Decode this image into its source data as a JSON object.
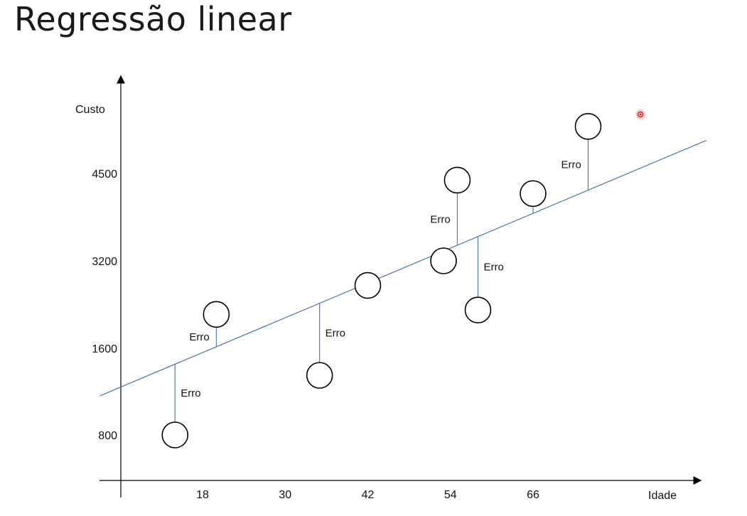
{
  "title": "Regressão linear",
  "chart_data": {
    "type": "scatter",
    "title": "Regressão linear",
    "xlabel": "Idade",
    "ylabel": "Custo",
    "x_ticks": [
      18,
      30,
      42,
      54,
      66
    ],
    "y_ticks": [
      800,
      1600,
      3200,
      4500
    ],
    "points": [
      {
        "x": 14,
        "y": 800
      },
      {
        "x": 20,
        "y": 2220
      },
      {
        "x": 35,
        "y": 1350
      },
      {
        "x": 42,
        "y": 2750
      },
      {
        "x": 53,
        "y": 3200
      },
      {
        "x": 55,
        "y": 4400
      },
      {
        "x": 58,
        "y": 2300
      },
      {
        "x": 66,
        "y": 4200
      },
      {
        "x": 74,
        "y": 5200
      }
    ],
    "regression_line": {
      "x_start": 0,
      "y_start": 1240,
      "x_end": 86,
      "y_end": 4780
    },
    "error_label": "Erro",
    "line_color": "#4a72b8",
    "marker_color": "#000000"
  }
}
